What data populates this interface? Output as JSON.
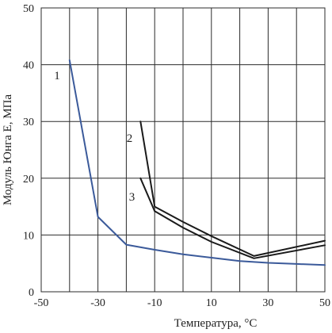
{
  "chart_data": {
    "type": "line",
    "title": "",
    "xlabel": "Температура, °C",
    "ylabel": "Модуль Юнга E, МПа",
    "xlim": [
      -50,
      50
    ],
    "ylim": [
      0,
      50
    ],
    "xticks": [
      -50,
      -30,
      -10,
      10,
      30,
      50
    ],
    "xgrid": [
      -50,
      -40,
      -30,
      -20,
      -10,
      0,
      10,
      20,
      30,
      40,
      50
    ],
    "yticks": [
      0,
      10,
      20,
      30,
      40,
      50
    ],
    "grid": true,
    "legend": "none",
    "series": [
      {
        "name": "1",
        "color": "#3b5a9a",
        "x": [
          -40,
          -30,
          -20,
          -10,
          0,
          10,
          20,
          30,
          40,
          50
        ],
        "y": [
          40.8,
          13.2,
          8.3,
          7.4,
          6.6,
          6.0,
          5.4,
          5.1,
          4.9,
          4.7
        ]
      },
      {
        "name": "2",
        "color": "#1a1a1a",
        "x": [
          -15,
          -10,
          0,
          10,
          25,
          50
        ],
        "y": [
          30.0,
          15.0,
          12.3,
          9.8,
          6.3,
          9.0
        ]
      },
      {
        "name": "3",
        "color": "#1a1a1a",
        "x": [
          -15,
          -10,
          0,
          10,
          25,
          50
        ],
        "y": [
          20.0,
          14.2,
          11.3,
          8.8,
          5.9,
          8.2
        ]
      }
    ]
  }
}
